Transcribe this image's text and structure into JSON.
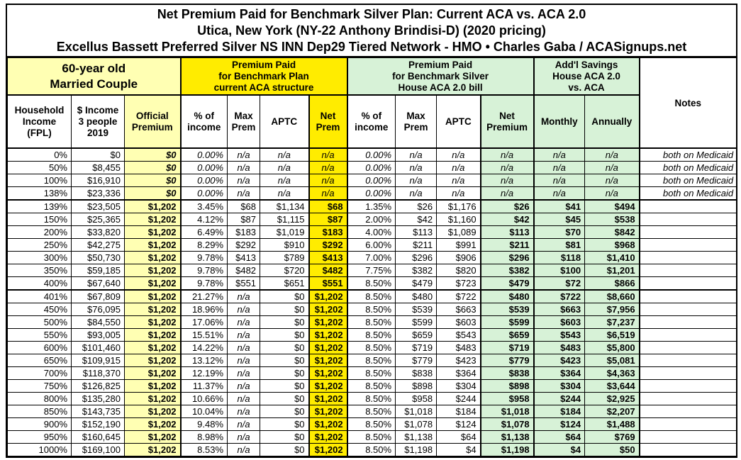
{
  "title": {
    "line1": "Net Premium Paid for Benchmark Silver Plan: Current ACA vs. ACA 2.0",
    "line2": "Utica, New York (NY-22 Anthony Brindisi-D) (2020 pricing)",
    "line3": "Excellus Bassett Preferred Silver NS INN Dep29 Tiered Network - HMO • Charles Gaba / ACASignups.net"
  },
  "groups": {
    "demographic": "60-year old\nMarried Couple",
    "aca": "Premium Paid\nfor Benchmark Plan\ncurrent ACA structure",
    "aca2": "Premium Paid\nfor Benchmark Silver\nHouse ACA 2.0 bill",
    "savings": "Add'l Savings\nHouse ACA 2.0\nvs. ACA",
    "notes": "Notes"
  },
  "subheaders": [
    "Household\nIncome\n(FPL)",
    "$ Income\n3 people\n2019",
    "Official\nPremium",
    "% of\nincome",
    "Max\nPrem",
    "APTC",
    "Net\nPrem",
    "% of\nincome",
    "Max\nPrem",
    "APTC",
    "Net\nPremium",
    "Monthly",
    "Annually"
  ],
  "colors": {
    "yellow": "#ffec00",
    "paleYellow": "#ffffb3",
    "green": "#d7f2d7",
    "border": "#000000"
  },
  "chart_data": {
    "type": "table",
    "title": "Net Premium Paid for Benchmark Silver Plan: Current ACA vs. ACA 2.0",
    "columns": [
      "Household Income (FPL)",
      "$ Income 3 people 2019",
      "Official Premium",
      "% of income (current ACA)",
      "Max Prem (current ACA)",
      "APTC (current ACA)",
      "Net Prem (current ACA)",
      "% of income (House ACA 2.0)",
      "Max Prem (House ACA 2.0)",
      "APTC (House ACA 2.0)",
      "Net Premium (House ACA 2.0)",
      "Add'l Savings Monthly",
      "Add'l Savings Annually",
      "Notes"
    ],
    "rows": [
      [
        "0%",
        "$0",
        "$0",
        "0.00%",
        "n/a",
        "n/a",
        "n/a",
        "0.00%",
        "n/a",
        "n/a",
        "n/a",
        "n/a",
        "n/a",
        "both on Medicaid"
      ],
      [
        "50%",
        "$8,455",
        "$0",
        "0.00%",
        "n/a",
        "n/a",
        "n/a",
        "0.00%",
        "n/a",
        "n/a",
        "n/a",
        "n/a",
        "n/a",
        "both on Medicaid"
      ],
      [
        "100%",
        "$16,910",
        "$0",
        "0.00%",
        "n/a",
        "n/a",
        "n/a",
        "0.00%",
        "n/a",
        "n/a",
        "n/a",
        "n/a",
        "n/a",
        "both on Medicaid"
      ],
      [
        "138%",
        "$23,336",
        "$0",
        "0.00%",
        "n/a",
        "n/a",
        "n/a",
        "0.00%",
        "n/a",
        "n/a",
        "n/a",
        "n/a",
        "n/a",
        "both on Medicaid"
      ],
      [
        "139%",
        "$23,505",
        "$1,202",
        "3.45%",
        "$68",
        "$1,134",
        "$68",
        "1.35%",
        "$26",
        "$1,176",
        "$26",
        "$41",
        "$494",
        ""
      ],
      [
        "150%",
        "$25,365",
        "$1,202",
        "4.12%",
        "$87",
        "$1,115",
        "$87",
        "2.00%",
        "$42",
        "$1,160",
        "$42",
        "$45",
        "$538",
        ""
      ],
      [
        "200%",
        "$33,820",
        "$1,202",
        "6.49%",
        "$183",
        "$1,019",
        "$183",
        "4.00%",
        "$113",
        "$1,089",
        "$113",
        "$70",
        "$842",
        ""
      ],
      [
        "250%",
        "$42,275",
        "$1,202",
        "8.29%",
        "$292",
        "$910",
        "$292",
        "6.00%",
        "$211",
        "$991",
        "$211",
        "$81",
        "$968",
        ""
      ],
      [
        "300%",
        "$50,730",
        "$1,202",
        "9.78%",
        "$413",
        "$789",
        "$413",
        "7.00%",
        "$296",
        "$906",
        "$296",
        "$118",
        "$1,410",
        ""
      ],
      [
        "350%",
        "$59,185",
        "$1,202",
        "9.78%",
        "$482",
        "$720",
        "$482",
        "7.75%",
        "$382",
        "$820",
        "$382",
        "$100",
        "$1,201",
        ""
      ],
      [
        "400%",
        "$67,640",
        "$1,202",
        "9.78%",
        "$551",
        "$651",
        "$551",
        "8.50%",
        "$479",
        "$723",
        "$479",
        "$72",
        "$866",
        ""
      ],
      [
        "401%",
        "$67,809",
        "$1,202",
        "21.27%",
        "n/a",
        "$0",
        "$1,202",
        "8.50%",
        "$480",
        "$722",
        "$480",
        "$722",
        "$8,660",
        ""
      ],
      [
        "450%",
        "$76,095",
        "$1,202",
        "18.96%",
        "n/a",
        "$0",
        "$1,202",
        "8.50%",
        "$539",
        "$663",
        "$539",
        "$663",
        "$7,956",
        ""
      ],
      [
        "500%",
        "$84,550",
        "$1,202",
        "17.06%",
        "n/a",
        "$0",
        "$1,202",
        "8.50%",
        "$599",
        "$603",
        "$599",
        "$603",
        "$7,237",
        ""
      ],
      [
        "550%",
        "$93,005",
        "$1,202",
        "15.51%",
        "n/a",
        "$0",
        "$1,202",
        "8.50%",
        "$659",
        "$543",
        "$659",
        "$543",
        "$6,519",
        ""
      ],
      [
        "600%",
        "$101,460",
        "$1,202",
        "14.22%",
        "n/a",
        "$0",
        "$1,202",
        "8.50%",
        "$719",
        "$483",
        "$719",
        "$483",
        "$5,800",
        ""
      ],
      [
        "650%",
        "$109,915",
        "$1,202",
        "13.12%",
        "n/a",
        "$0",
        "$1,202",
        "8.50%",
        "$779",
        "$423",
        "$779",
        "$423",
        "$5,081",
        ""
      ],
      [
        "700%",
        "$118,370",
        "$1,202",
        "12.19%",
        "n/a",
        "$0",
        "$1,202",
        "8.50%",
        "$838",
        "$364",
        "$838",
        "$364",
        "$4,363",
        ""
      ],
      [
        "750%",
        "$126,825",
        "$1,202",
        "11.37%",
        "n/a",
        "$0",
        "$1,202",
        "8.50%",
        "$898",
        "$304",
        "$898",
        "$304",
        "$3,644",
        ""
      ],
      [
        "800%",
        "$135,280",
        "$1,202",
        "10.66%",
        "n/a",
        "$0",
        "$1,202",
        "8.50%",
        "$958",
        "$244",
        "$958",
        "$244",
        "$2,925",
        ""
      ],
      [
        "850%",
        "$143,735",
        "$1,202",
        "10.04%",
        "n/a",
        "$0",
        "$1,202",
        "8.50%",
        "$1,018",
        "$184",
        "$1,018",
        "$184",
        "$2,207",
        ""
      ],
      [
        "900%",
        "$152,190",
        "$1,202",
        "9.48%",
        "n/a",
        "$0",
        "$1,202",
        "8.50%",
        "$1,078",
        "$124",
        "$1,078",
        "$124",
        "$1,488",
        ""
      ],
      [
        "950%",
        "$160,645",
        "$1,202",
        "8.98%",
        "n/a",
        "$0",
        "$1,202",
        "8.50%",
        "$1,138",
        "$64",
        "$1,138",
        "$64",
        "$769",
        ""
      ],
      [
        "1000%",
        "$169,100",
        "$1,202",
        "8.53%",
        "n/a",
        "$0",
        "$1,202",
        "8.50%",
        "$1,198",
        "$4",
        "$1,198",
        "$4",
        "$50",
        ""
      ]
    ],
    "section_breaks_after_fpl": [
      "138%",
      "400%"
    ],
    "legend_position": "none",
    "grid": true
  }
}
